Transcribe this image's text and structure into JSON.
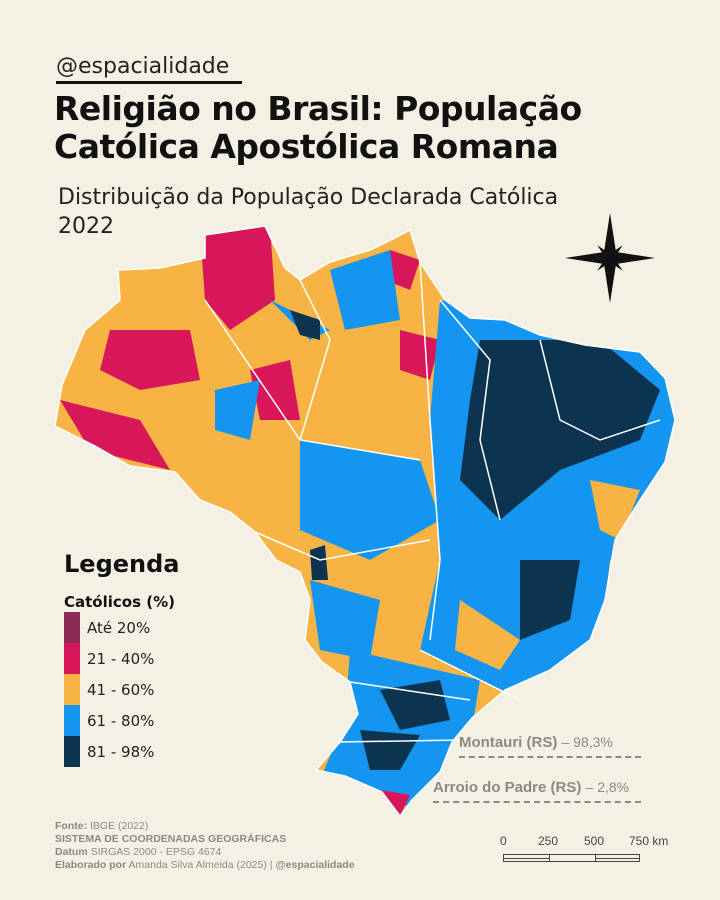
{
  "handle": "@espacialidade",
  "title": {
    "line1": "Religião no Brasil: População",
    "line2": "Católica Apostólica Romana"
  },
  "subtitle": {
    "line1": "Distribuição da População Declarada Católica",
    "line2": "2022"
  },
  "compass": {
    "icon": "compass-rose-icon"
  },
  "legend": {
    "title": "Legenda",
    "subtitle": "Católicos (%)",
    "items": [
      {
        "label": "Até 20%",
        "color": "#8b2c56"
      },
      {
        "label": "21 - 40%",
        "color": "#d8165a"
      },
      {
        "label": "41 - 60%",
        "color": "#f7b445"
      },
      {
        "label": "61 - 80%",
        "color": "#1495f0"
      },
      {
        "label": "81 - 98%",
        "color": "#0c3350"
      }
    ]
  },
  "annotations": [
    {
      "name": "Montauri (RS)",
      "value": "– 98,3%"
    },
    {
      "name": "Arroio do Padre (RS)",
      "value": "– 2,8%"
    }
  ],
  "footer": {
    "source_label": "Fonte:",
    "source": "IBGE (2022)",
    "crs": "SISTEMA DE COORDENADAS GEOGRÁFICAS",
    "datum_label": "Datum",
    "datum": "SIRGAS 2000 - EPSG 4674",
    "author_label": "Elaborado por",
    "author": "Amanda Silva Almeida (2025) |",
    "author_handle": "@espacialidade"
  },
  "scale_bar": {
    "labels": [
      "0",
      "250",
      "500",
      "750 km"
    ]
  }
}
